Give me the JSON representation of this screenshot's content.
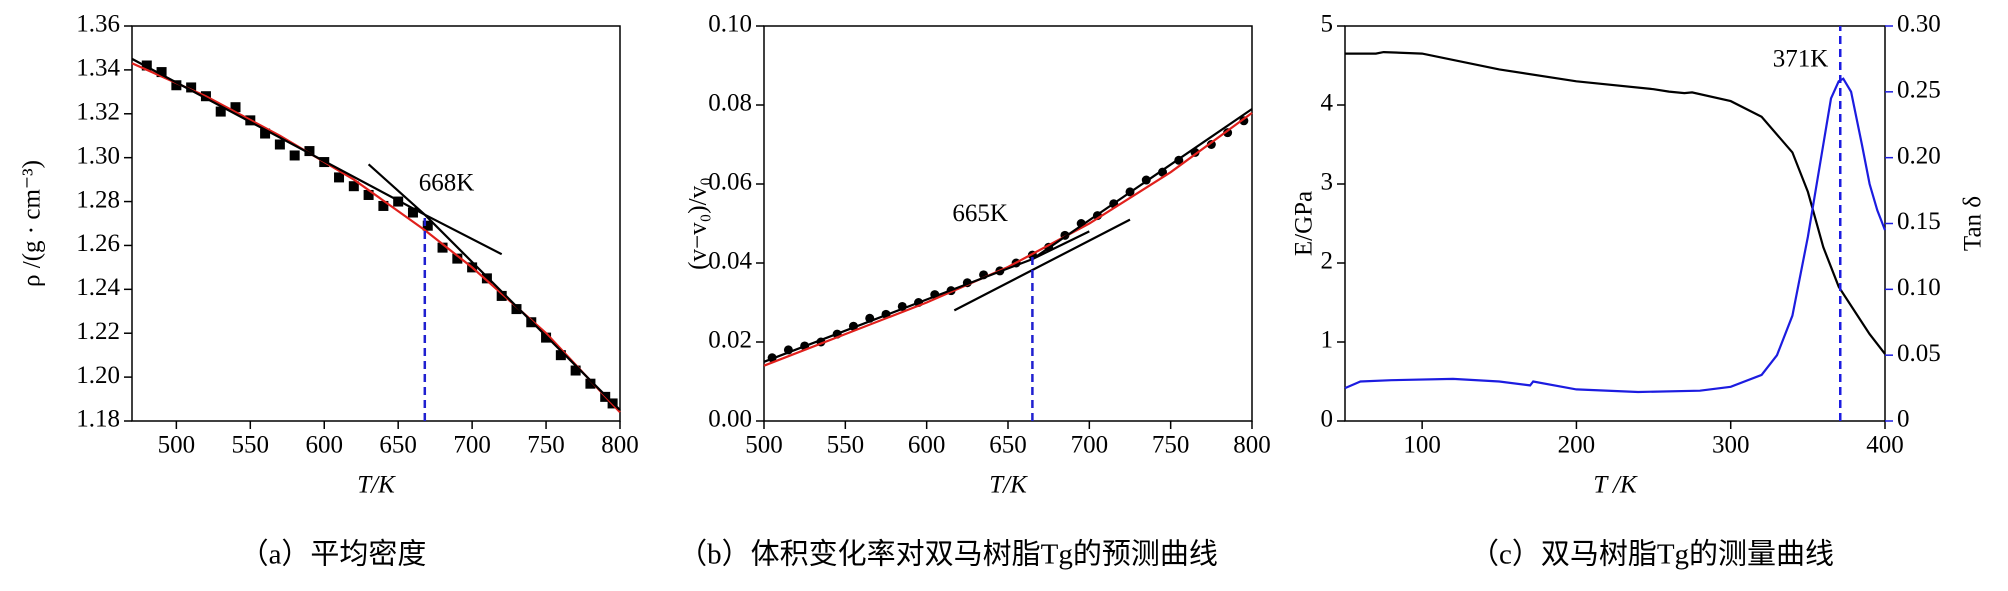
{
  "chart_data": [
    {
      "type": "scatter",
      "caption": "（a）平均密度",
      "xlabel": "T/K",
      "ylabel": "ρ /(g · cm⁻³)",
      "xlim": [
        470,
        800
      ],
      "xticks": [
        500,
        550,
        600,
        650,
        700,
        750,
        800
      ],
      "ylim": [
        1.18,
        1.36
      ],
      "yticks": [
        1.18,
        {
          "value": 1.2,
          "label": "1.20"
        },
        1.22,
        1.24,
        1.26,
        1.28,
        {
          "value": 1.3,
          "label": "1.30"
        },
        1.32,
        1.34,
        1.36
      ],
      "series": [
        {
          "mode": "markers",
          "marker": "square",
          "color": "#000000",
          "x": [
            480,
            490,
            500,
            510,
            520,
            530,
            540,
            550,
            560,
            570,
            580,
            590,
            600,
            610,
            620,
            630,
            640,
            650,
            660,
            670,
            680,
            690,
            700,
            710,
            720,
            730,
            740,
            750,
            760,
            770,
            780,
            790,
            795
          ],
          "values": [
            1.342,
            1.339,
            1.333,
            1.332,
            1.328,
            1.321,
            1.323,
            1.317,
            1.311,
            1.306,
            1.301,
            1.303,
            1.298,
            1.291,
            1.287,
            1.283,
            1.278,
            1.28,
            1.275,
            1.269,
            1.259,
            1.254,
            1.25,
            1.245,
            1.237,
            1.231,
            1.225,
            1.218,
            1.21,
            1.203,
            1.197,
            1.191,
            1.188
          ]
        },
        {
          "mode": "lines",
          "color": "#e0201c",
          "x": [
            470,
            520,
            570,
            620,
            668,
            700,
            750,
            800
          ],
          "values": [
            1.343,
            1.328,
            1.31,
            1.29,
            1.267,
            1.25,
            1.22,
            1.184
          ]
        },
        {
          "mode": "lines",
          "color": "#000000",
          "x": [
            470,
            668,
            720
          ],
          "values": [
            1.345,
            1.274,
            1.256
          ]
        },
        {
          "mode": "lines",
          "color": "#000000",
          "x": [
            630,
            668,
            800
          ],
          "values": [
            1.297,
            1.274,
            1.185
          ]
        }
      ],
      "annotation": {
        "text": "668K",
        "x": 668,
        "y": 1.274,
        "color": "#2020d0"
      }
    },
    {
      "type": "scatter",
      "caption": "（b）体积变化率对双马树脂Tg的预测曲线",
      "xlabel": "T/K",
      "ylabel": "(v−v₀)/v₀",
      "xlim": [
        500,
        800
      ],
      "xticks": [
        500,
        550,
        600,
        650,
        700,
        750,
        800
      ],
      "ylim": [
        0,
        0.1
      ],
      "yticks": [
        {
          "value": 0,
          "label": "0.00"
        },
        0.02,
        0.04,
        0.06,
        0.08,
        {
          "value": 0.1,
          "label": "0.10"
        }
      ],
      "series": [
        {
          "mode": "markers",
          "marker": "circle",
          "color": "#000000",
          "x": [
            505,
            515,
            525,
            535,
            545,
            555,
            565,
            575,
            585,
            595,
            605,
            615,
            625,
            635,
            645,
            655,
            665,
            675,
            685,
            695,
            705,
            715,
            725,
            735,
            745,
            755,
            765,
            775,
            785,
            795
          ],
          "values": [
            0.016,
            0.018,
            0.019,
            0.02,
            0.022,
            0.024,
            0.026,
            0.027,
            0.029,
            0.03,
            0.032,
            0.033,
            0.035,
            0.037,
            0.038,
            0.04,
            0.042,
            0.044,
            0.047,
            0.05,
            0.052,
            0.055,
            0.058,
            0.061,
            0.063,
            0.066,
            0.068,
            0.07,
            0.073,
            0.076
          ]
        },
        {
          "mode": "lines",
          "color": "#e0201c",
          "x": [
            500,
            550,
            600,
            650,
            700,
            750,
            800
          ],
          "values": [
            0.014,
            0.022,
            0.03,
            0.039,
            0.05,
            0.063,
            0.078
          ]
        },
        {
          "mode": "lines",
          "color": "#000000",
          "x": [
            500,
            665,
            700
          ],
          "values": [
            0.015,
            0.041,
            0.048
          ]
        },
        {
          "mode": "lines",
          "color": "#000000",
          "x": [
            617,
            725
          ],
          "values": [
            0.028,
            0.051
          ]
        },
        {
          "mode": "lines",
          "color": "#000000",
          "x": [
            665,
            800
          ],
          "values": [
            0.041,
            0.079
          ]
        }
      ],
      "annotation": {
        "text": "665K",
        "x": 665,
        "y": 0.042,
        "color": "#2020d0"
      }
    },
    {
      "type": "line",
      "caption": "（c）双马树脂Tg的测量曲线",
      "xlabel": "T /K",
      "ylabel": "E/GPa",
      "y2label": "Tan δ",
      "y2color": "#1c1ce0",
      "xlim": [
        50,
        400
      ],
      "xticks": [
        100,
        200,
        300,
        400
      ],
      "ylim": [
        0,
        5
      ],
      "yticks": [
        0,
        1,
        2,
        3,
        4,
        5
      ],
      "y2lim": [
        0,
        0.3
      ],
      "y2ticks": [
        {
          "value": 0,
          "label": "0"
        },
        0.05,
        {
          "value": 0.1,
          "label": "0.10"
        },
        0.15,
        {
          "value": 0.2,
          "label": "0.20"
        },
        0.25,
        {
          "value": 0.3,
          "label": "0.30"
        }
      ],
      "series": [
        {
          "mode": "lines",
          "color": "#000000",
          "x": [
            50,
            70,
            75,
            100,
            150,
            200,
            250,
            260,
            270,
            275,
            300,
            320,
            340,
            350,
            360,
            370,
            380,
            390,
            400
          ],
          "values": [
            4.65,
            4.65,
            4.67,
            4.65,
            4.45,
            4.3,
            4.2,
            4.17,
            4.15,
            4.16,
            4.05,
            3.85,
            3.4,
            2.9,
            2.2,
            1.7,
            1.4,
            1.1,
            0.85
          ]
        },
        {
          "mode": "lines",
          "axis": "y2",
          "color": "#1c1ce0",
          "x": [
            50,
            60,
            80,
            120,
            150,
            170,
            172,
            200,
            240,
            280,
            300,
            320,
            330,
            340,
            350,
            360,
            365,
            370,
            373,
            378,
            385,
            390,
            395,
            400
          ],
          "values": [
            0.025,
            0.03,
            0.031,
            0.032,
            0.03,
            0.027,
            0.03,
            0.024,
            0.022,
            0.023,
            0.026,
            0.035,
            0.05,
            0.08,
            0.14,
            0.21,
            0.245,
            0.258,
            0.26,
            0.25,
            0.21,
            0.18,
            0.16,
            0.145
          ]
        }
      ],
      "annotation": {
        "text": "371K",
        "x": 371,
        "y": 5,
        "color": "#1c1ce0"
      }
    }
  ]
}
